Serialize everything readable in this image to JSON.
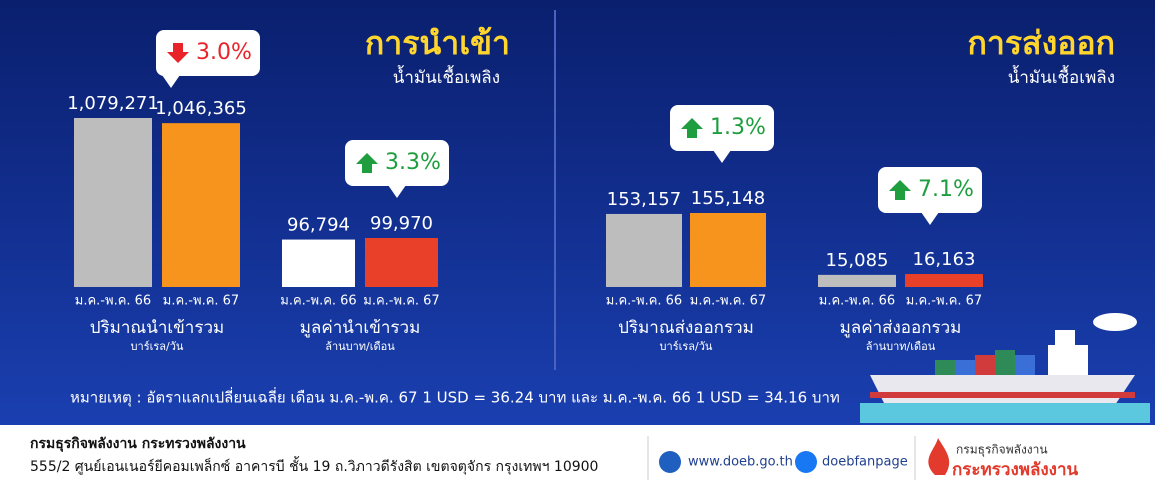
{
  "chart_data": [
    {
      "type": "bar",
      "title": "ปริมาณนำเข้ารวม",
      "subtitle": "บาร์เรล/วัน",
      "categories": [
        "ม.ค.-พ.ค. 66",
        "ม.ค.-พ.ค. 67"
      ],
      "values": [
        1079271,
        1046365
      ],
      "value_labels": [
        "1,079,271",
        "1,046,365"
      ],
      "colors": [
        "#bdbdbd",
        "#f7941d"
      ],
      "change": {
        "value": 3.0,
        "label": "3.0%",
        "direction": "down"
      }
    },
    {
      "type": "bar",
      "title": "มูลค่านำเข้ารวม",
      "subtitle": "ล้านบาท/เดือน",
      "categories": [
        "ม.ค.-พ.ค. 66",
        "ม.ค.-พ.ค. 67"
      ],
      "values": [
        96794,
        99970
      ],
      "value_labels": [
        "96,794",
        "99,970"
      ],
      "colors": [
        "#ffffff",
        "#e9402a"
      ],
      "change": {
        "value": 3.3,
        "label": "3.3%",
        "direction": "up"
      }
    },
    {
      "type": "bar",
      "title": "ปริมาณส่งออกรวม",
      "subtitle": "บาร์เรล/วัน",
      "categories": [
        "ม.ค.-พ.ค. 66",
        "ม.ค.-พ.ค. 67"
      ],
      "values": [
        153157,
        155148
      ],
      "value_labels": [
        "153,157",
        "155,148"
      ],
      "colors": [
        "#bdbdbd",
        "#f7941d"
      ],
      "change": {
        "value": 1.3,
        "label": "1.3%",
        "direction": "up"
      }
    },
    {
      "type": "bar",
      "title": "มูลค่าส่งออกรวม",
      "subtitle": "ล้านบาท/เดือน",
      "categories": [
        "ม.ค.-พ.ค. 66",
        "ม.ค.-พ.ค. 67"
      ],
      "values": [
        15085,
        16163
      ],
      "value_labels": [
        "15,085",
        "16,163"
      ],
      "colors": [
        "#bdbdbd",
        "#e9402a"
      ],
      "change": {
        "value": 7.1,
        "label": "7.1%",
        "direction": "up"
      }
    }
  ],
  "sections": [
    {
      "title": "การนำเข้า",
      "subtitle": "น้ำมันเชื้อเพลิง"
    },
    {
      "title": "การส่งออก",
      "subtitle": "น้ำมันเชื้อเพลิง"
    }
  ],
  "note": "หมายเหตุ : อัตราแลกเปลี่ยนเฉลี่ย เดือน ม.ค.-พ.ค. 67 1 USD = 36.24 บาท และ ม.ค.-พ.ค. 66 1 USD = 34.16 บาท",
  "footer": {
    "org": "กรมธุรกิจพลังงาน กระทรวงพลังงาน",
    "address": "555/2 ศูนย์เอนเนอร์ยีคอมเพล็กซ์ อาคารบี ชั้น 19 ถ.วิภาวดีรังสิต เขตจตุจักร กรุงเทพฯ 10900",
    "website": "www.doeb.go.th",
    "facebook": "doebfanpage",
    "logo_line1": "กรมธุรกิจพลังงาน",
    "logo_line2": "กระทรวงพลังงาน"
  }
}
